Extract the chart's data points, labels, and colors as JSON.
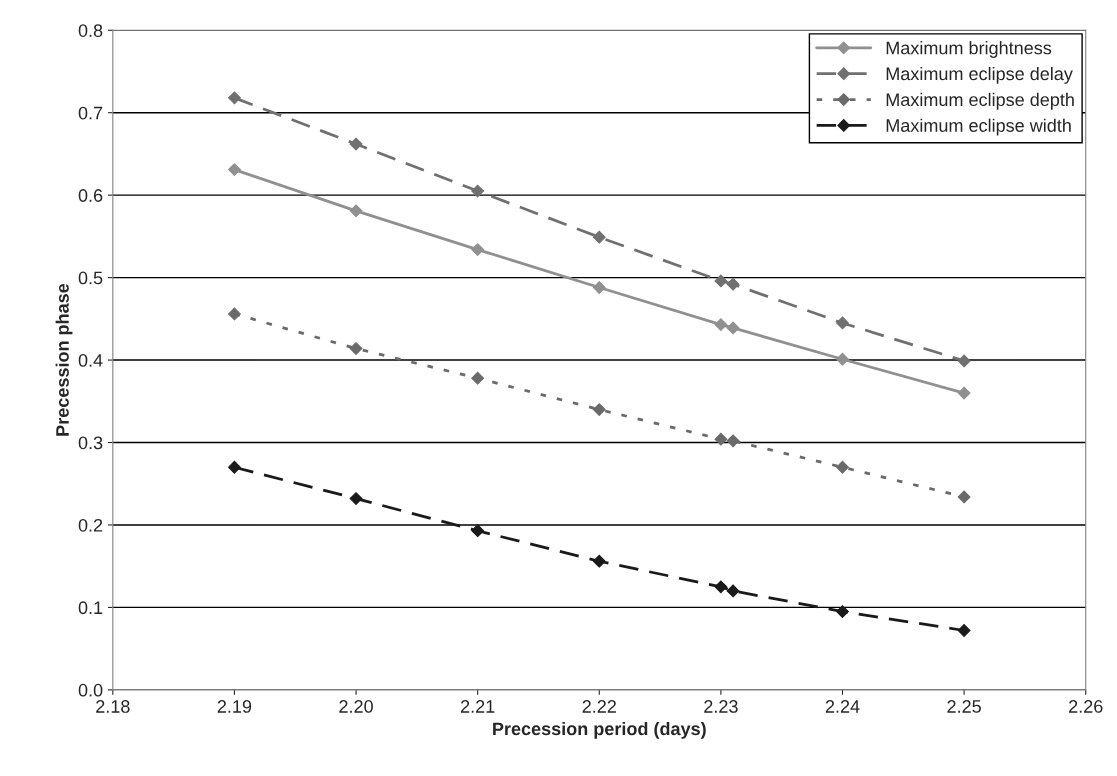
{
  "chart_data": {
    "type": "line",
    "xlabel": "Precession period (days)",
    "ylabel": "Precession phase",
    "x": [
      2.19,
      2.2,
      2.21,
      2.22,
      2.23,
      2.231,
      2.24,
      2.25
    ],
    "series": [
      {
        "name": "Maximum brightness",
        "color": "#909090",
        "line_style": "solid",
        "values": [
          0.631,
          0.581,
          0.534,
          0.488,
          0.443,
          0.439,
          0.401,
          0.36
        ]
      },
      {
        "name": "Maximum eclipse delay",
        "color": "#707070",
        "line_style": "dashed",
        "values": [
          0.718,
          0.662,
          0.605,
          0.549,
          0.496,
          0.492,
          0.445,
          0.399
        ]
      },
      {
        "name": "Maximum eclipse depth",
        "color": "#6a6a6a",
        "line_style": "dotted",
        "values": [
          0.456,
          0.414,
          0.378,
          0.34,
          0.304,
          0.302,
          0.27,
          0.234
        ]
      },
      {
        "name": "Maximum eclipse width",
        "color": "#1a1a1a",
        "line_style": "dashed",
        "values": [
          0.27,
          0.232,
          0.193,
          0.156,
          0.125,
          0.12,
          0.095,
          0.072
        ]
      }
    ],
    "xlim": [
      2.18,
      2.26
    ],
    "xticks": [
      2.18,
      2.19,
      {
        "value": 2.2,
        "label": "2.20"
      },
      2.21,
      2.22,
      2.23,
      2.24,
      2.25,
      2.26
    ],
    "ylim": [
      0.0,
      0.8
    ],
    "yticks": [
      {
        "value": 0,
        "label": "0.0"
      },
      0.1,
      0.2,
      0.3,
      0.4,
      0.5,
      0.6,
      0.7,
      0.8
    ],
    "grid": "y",
    "legend": "top right",
    "marker": "diamond"
  }
}
